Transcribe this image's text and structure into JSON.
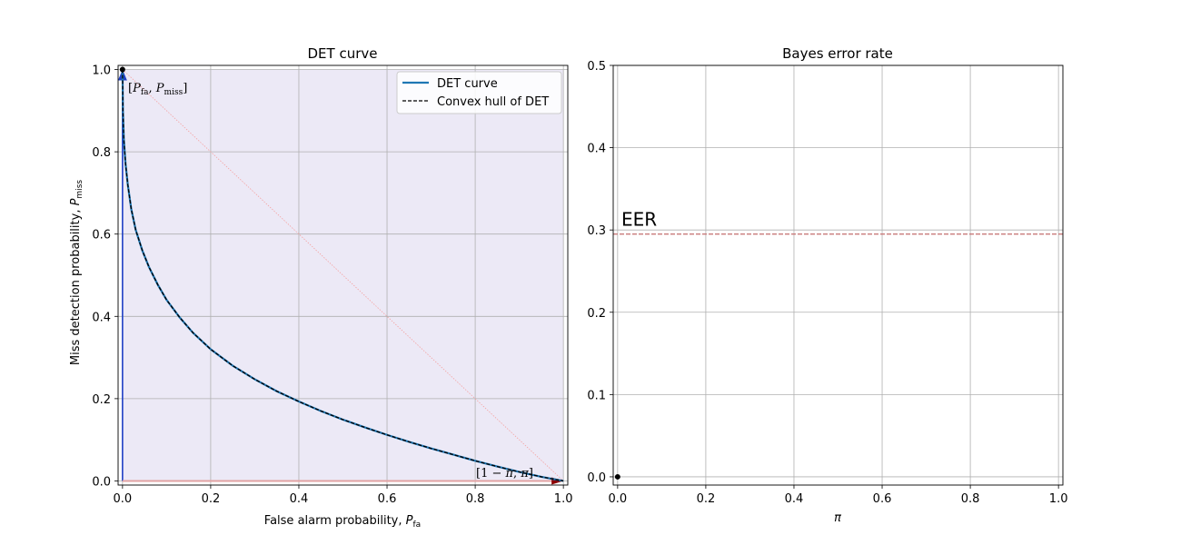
{
  "chart_data": [
    {
      "type": "line",
      "title": "DET curve",
      "xlabel": "False alarm probability, P_fa",
      "xlabel_main": "False alarm probability, ",
      "xlabel_sym": "P",
      "xlabel_sub": "fa",
      "ylabel": "Miss detection probability, P_miss",
      "ylabel_main": "Miss detection probability, ",
      "ylabel_sym": "P",
      "ylabel_sub": "miss",
      "xlim": [
        -0.01,
        1.01
      ],
      "ylim": [
        -0.01,
        1.01
      ],
      "xticks": [
        "0.0",
        "0.2",
        "0.4",
        "0.6",
        "0.8",
        "1.0"
      ],
      "yticks": [
        "0.0",
        "0.2",
        "0.4",
        "0.6",
        "0.8",
        "1.0"
      ],
      "grid": true,
      "legend_position": "upper right",
      "series": [
        {
          "name": "DET curve",
          "color": "#1f77b4",
          "x": [
            0.0,
            0.001,
            0.003,
            0.007,
            0.012,
            0.02,
            0.03,
            0.045,
            0.06,
            0.08,
            0.1,
            0.13,
            0.16,
            0.2,
            0.25,
            0.3,
            0.35,
            0.4,
            0.45,
            0.5,
            0.55,
            0.6,
            0.65,
            0.7,
            0.75,
            0.8,
            0.85,
            0.9,
            0.95,
            0.98,
            1.0
          ],
          "y": [
            1.0,
            0.9,
            0.83,
            0.77,
            0.72,
            0.66,
            0.61,
            0.56,
            0.52,
            0.477,
            0.44,
            0.397,
            0.36,
            0.32,
            0.28,
            0.247,
            0.218,
            0.193,
            0.17,
            0.149,
            0.13,
            0.112,
            0.095,
            0.079,
            0.064,
            0.049,
            0.035,
            0.022,
            0.01,
            0.004,
            0.0
          ]
        },
        {
          "name": "Convex hull of DET",
          "color": "#000000",
          "x": [
            0.0,
            0.001,
            0.003,
            0.007,
            0.012,
            0.02,
            0.03,
            0.045,
            0.06,
            0.08,
            0.1,
            0.13,
            0.16,
            0.2,
            0.25,
            0.3,
            0.35,
            0.4,
            0.45,
            0.5,
            0.55,
            0.6,
            0.65,
            0.7,
            0.75,
            0.8,
            0.85,
            0.9,
            0.95,
            0.98,
            1.0
          ],
          "y": [
            1.0,
            0.9,
            0.83,
            0.77,
            0.72,
            0.66,
            0.61,
            0.56,
            0.52,
            0.477,
            0.44,
            0.397,
            0.36,
            0.32,
            0.28,
            0.247,
            0.218,
            0.193,
            0.17,
            0.149,
            0.13,
            0.112,
            0.095,
            0.079,
            0.064,
            0.049,
            0.035,
            0.022,
            0.01,
            0.004,
            0.0
          ]
        }
      ],
      "shaded_region": {
        "color": "#ece9f6"
      },
      "diagonal_line": {
        "x": [
          0.0,
          1.0
        ],
        "y": [
          1.0,
          0.0
        ],
        "color": "#f4a3a3"
      },
      "arrows": [
        {
          "from": [
            0.0,
            0.0
          ],
          "to": [
            0.0,
            1.0
          ],
          "color": "#1f3fc4"
        },
        {
          "from": [
            0.0,
            0.0
          ],
          "to": [
            1.0,
            0.0
          ],
          "color": "#c0392b"
        }
      ],
      "points": [
        {
          "x": 0.0,
          "y": 1.0
        }
      ],
      "annotations": {
        "pfa_pmiss": "[P_fa, P_miss]",
        "pi_label": "[1 − π, π]"
      }
    },
    {
      "type": "line",
      "title": "Bayes error rate",
      "xlabel": "π",
      "xlim": [
        -0.01,
        1.01
      ],
      "ylim": [
        -0.01,
        0.5
      ],
      "xticks": [
        "0.0",
        "0.2",
        "0.4",
        "0.6",
        "0.8",
        "1.0"
      ],
      "yticks": [
        "0.0",
        "0.1",
        "0.2",
        "0.3",
        "0.4",
        "0.5"
      ],
      "grid": true,
      "eer": {
        "label": "EER",
        "value": 0.295,
        "color": "#c97b7b"
      },
      "points": [
        {
          "x": 0.0,
          "y": 0.0
        }
      ]
    }
  ]
}
